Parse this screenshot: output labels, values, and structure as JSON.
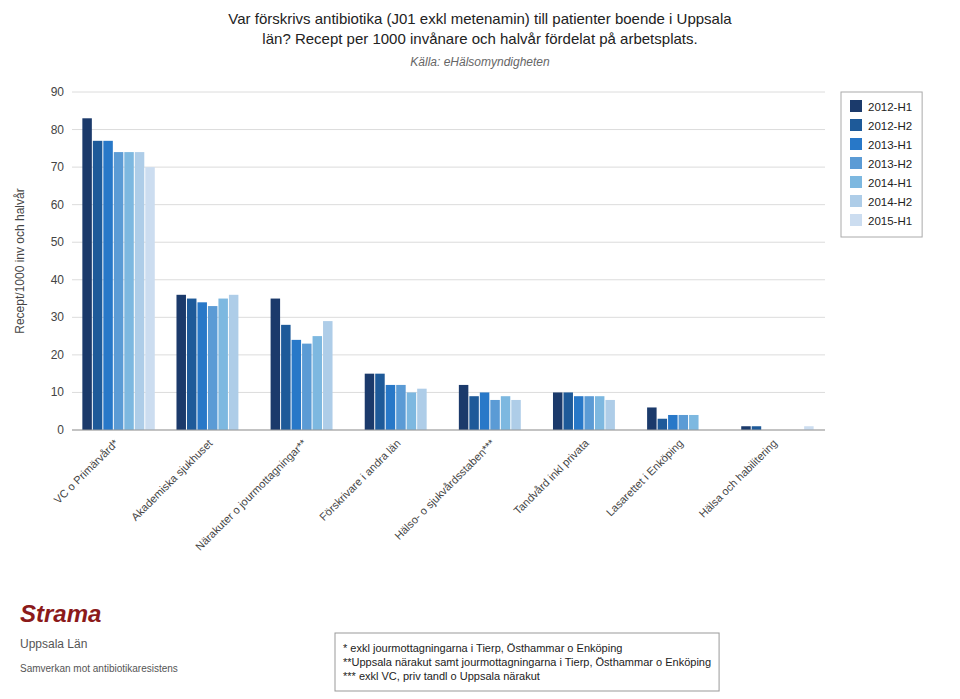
{
  "chart_data": {
    "type": "bar",
    "title": [
      "Var förskrivs antibiotika (J01 exkl metenamin) till patienter boende i Uppsala",
      "län? Recept per 1000 invånare och halvår fördelat på arbetsplats."
    ],
    "subtitle": "Källa: eHälsomyndigheten",
    "ylabel": "Recept/1000 inv och halvår",
    "categories": [
      "VC o Primärvård*",
      "Akademiska sjukhuset",
      "Närakuter o jourmottagningar**",
      "Förskrivare i andra län",
      "Hälso- o sjukvårdsstaben***",
      "Tandvård inkl privata",
      "Lasarettet i Enköping",
      "Hälsa och habilitering"
    ],
    "series": [
      {
        "name": "2012-H1",
        "color": "#1b3a6b",
        "values": [
          83,
          36,
          35,
          15,
          12,
          10,
          6,
          1
        ]
      },
      {
        "name": "2012-H2",
        "color": "#1e5a99",
        "values": [
          77,
          35,
          28,
          15,
          9,
          10,
          3,
          1
        ]
      },
      {
        "name": "2013-H1",
        "color": "#2878c8",
        "values": [
          77,
          34,
          24,
          12,
          10,
          9,
          4,
          0
        ]
      },
      {
        "name": "2013-H2",
        "color": "#5b9bd5",
        "values": [
          74,
          33,
          23,
          12,
          8,
          9,
          4,
          0
        ]
      },
      {
        "name": "2014-H1",
        "color": "#7db8e0",
        "values": [
          74,
          35,
          25,
          10,
          9,
          9,
          4,
          0
        ]
      },
      {
        "name": "2014-H2",
        "color": "#aecde8",
        "values": [
          74,
          36,
          29,
          11,
          8,
          8,
          0,
          0
        ]
      },
      {
        "name": "2015-H1",
        "color": "#ccddf0",
        "values": [
          70,
          0,
          0,
          0,
          0,
          0,
          0,
          1
        ]
      }
    ],
    "ylim": [
      0,
      90
    ],
    "yticks": [
      0,
      10,
      20,
      30,
      40,
      50,
      60,
      70,
      80,
      90
    ],
    "grid": true,
    "legend": "upper right",
    "footnotes": [
      "* exkl jourmottagningarna i Tierp, Östhammar o Enköping",
      "**Uppsala närakut samt jourmottagningarna i Tierp, Östhammar o Enköping",
      "*** exkl VC, priv tandl o Uppsala närakut"
    ],
    "annotations": [
      "Strama",
      "Uppsala Län",
      "Samverkan mot antibiotikaresistens"
    ]
  }
}
